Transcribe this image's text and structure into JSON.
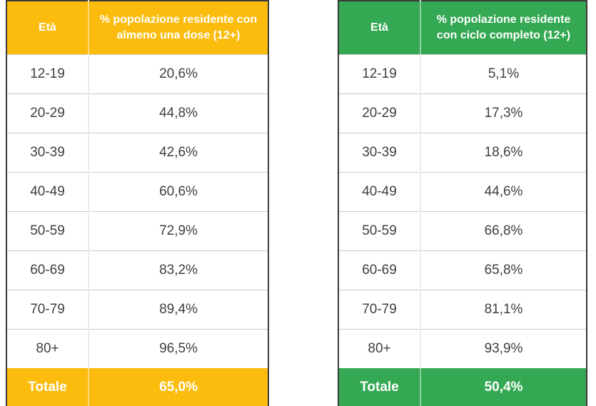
{
  "tables": [
    {
      "id": "first-dose",
      "accent": "#FBBC0D",
      "header": {
        "age": "Età",
        "value": "% popolazione residente con almeno una dose (12+)"
      },
      "rows": [
        {
          "age": "12-19",
          "value": "20,6%"
        },
        {
          "age": "20-29",
          "value": "44,8%"
        },
        {
          "age": "30-39",
          "value": "42,6%"
        },
        {
          "age": "40-49",
          "value": "60,6%"
        },
        {
          "age": "50-59",
          "value": "72,9%"
        },
        {
          "age": "60-69",
          "value": "83,2%"
        },
        {
          "age": "70-79",
          "value": "89,4%"
        },
        {
          "age": "80+",
          "value": "96,5%"
        }
      ],
      "total": {
        "label": "Totale",
        "value": "65,0%"
      }
    },
    {
      "id": "full-cycle",
      "accent": "#34A853",
      "header": {
        "age": "Età",
        "value": "% popolazione residente con ciclo completo (12+)"
      },
      "rows": [
        {
          "age": "12-19",
          "value": "5,1%"
        },
        {
          "age": "20-29",
          "value": "17,3%"
        },
        {
          "age": "30-39",
          "value": "18,6%"
        },
        {
          "age": "40-49",
          "value": "44,6%"
        },
        {
          "age": "50-59",
          "value": "66,8%"
        },
        {
          "age": "60-69",
          "value": "65,8%"
        },
        {
          "age": "70-79",
          "value": "81,1%"
        },
        {
          "age": "80+",
          "value": "93,9%"
        }
      ],
      "total": {
        "label": "Totale",
        "value": "50,4%"
      }
    }
  ],
  "colors": {
    "amber_accent": "#FBBC0D",
    "green_accent": "#34A853",
    "outer_border": "#3A3A3A",
    "row_divider": "#CCCCCC",
    "body_text": "#3C4043",
    "header_text": "#FFFFFF"
  },
  "chart_data": [
    {
      "type": "table",
      "title": "% popolazione residente con almeno una dose (12+)",
      "columns": [
        "Età",
        "% popolazione residente con almeno una dose (12+)"
      ],
      "categories": [
        "12-19",
        "20-29",
        "30-39",
        "40-49",
        "50-59",
        "60-69",
        "70-79",
        "80+",
        "Totale"
      ],
      "values": [
        20.6,
        44.8,
        42.6,
        60.6,
        72.9,
        83.2,
        89.4,
        96.5,
        65.0
      ],
      "unit": "%",
      "accent_color": "#FBBC0D"
    },
    {
      "type": "table",
      "title": "% popolazione residente con ciclo completo (12+)",
      "columns": [
        "Età",
        "% popolazione residente con ciclo completo (12+)"
      ],
      "categories": [
        "12-19",
        "20-29",
        "30-39",
        "40-49",
        "50-59",
        "60-69",
        "70-79",
        "80+",
        "Totale"
      ],
      "values": [
        5.1,
        17.3,
        18.6,
        44.6,
        66.8,
        65.8,
        81.1,
        93.9,
        50.4
      ],
      "unit": "%",
      "accent_color": "#34A853"
    }
  ]
}
